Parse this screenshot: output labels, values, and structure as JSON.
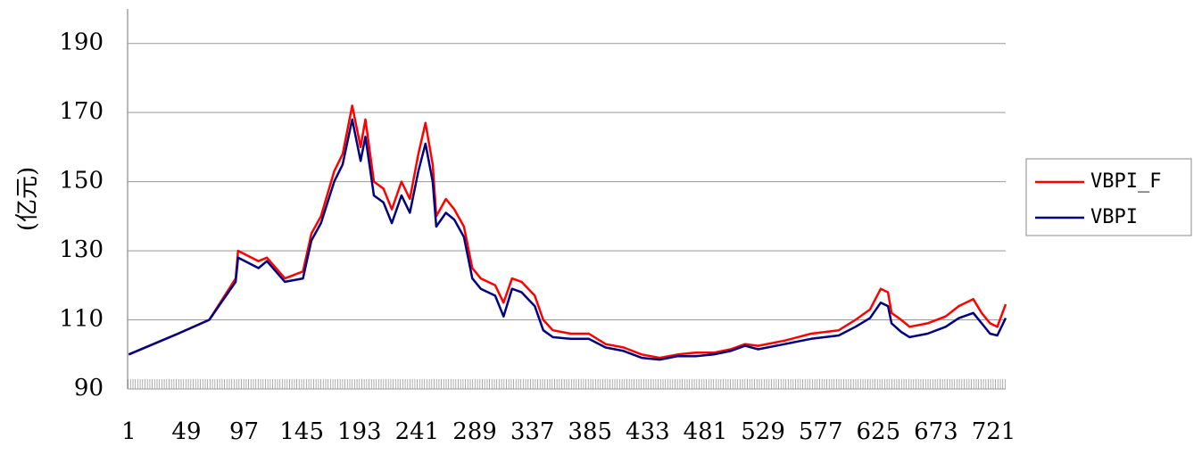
{
  "chart_data": {
    "type": "line",
    "y_label": "(亿元)",
    "x": [
      1,
      42,
      68,
      90,
      92,
      109,
      116,
      131,
      146,
      153,
      161,
      172,
      179,
      187,
      194,
      198,
      205,
      213,
      220,
      228,
      235,
      242,
      248,
      254,
      257,
      265,
      272,
      280,
      287,
      294,
      306,
      313,
      320,
      328,
      339,
      346,
      354,
      369,
      384,
      398,
      413,
      428,
      443,
      458,
      473,
      488,
      502,
      514,
      525,
      547,
      569,
      592,
      606,
      618,
      627,
      633,
      636,
      644,
      651,
      666,
      681,
      692,
      704,
      711,
      718,
      724,
      731
    ],
    "series": [
      {
        "name": "VBPI_F",
        "color": "#ff0000",
        "values": [
          100,
          106,
          110,
          122,
          130,
          127,
          128,
          122,
          124,
          135,
          140,
          153,
          158,
          172,
          160,
          168,
          150,
          148,
          142,
          150,
          145,
          158,
          167,
          155,
          140,
          145,
          142,
          137,
          125,
          122,
          120,
          115,
          122,
          121,
          117,
          110,
          107,
          106,
          106,
          103,
          102,
          100,
          99,
          100,
          100.5,
          100.5,
          101.5,
          103,
          102.5,
          104,
          106,
          107,
          110,
          113,
          119,
          118,
          112,
          110,
          108,
          109,
          111,
          114,
          116,
          112,
          109,
          108,
          114.5
        ]
      },
      {
        "name": "VBPI",
        "color": "#000080",
        "values": [
          100,
          106,
          110,
          121,
          128,
          125,
          127,
          121,
          122,
          133,
          138,
          150,
          155,
          168,
          156,
          163,
          146,
          144,
          138,
          146,
          141,
          153,
          161,
          150,
          137,
          141,
          139,
          134,
          122,
          119,
          117,
          111,
          119,
          118,
          114,
          107,
          105,
          104.5,
          104.5,
          102,
          101,
          99,
          98.5,
          99.5,
          99.5,
          100,
          101,
          102.5,
          101.5,
          103,
          104.5,
          105.5,
          108,
          110.5,
          115,
          114,
          109,
          106.5,
          105,
          106,
          108,
          110.5,
          112,
          109,
          106,
          105.5,
          110.5
        ]
      }
    ],
    "xlim": [
      0,
      731
    ],
    "xticks": [
      1,
      49,
      97,
      145,
      193,
      241,
      289,
      337,
      385,
      433,
      481,
      529,
      577,
      625,
      673,
      721
    ],
    "ylim": [
      90,
      200
    ],
    "yticks": [
      90,
      110,
      130,
      150,
      170,
      190
    ],
    "grid": true,
    "legend": "right"
  }
}
